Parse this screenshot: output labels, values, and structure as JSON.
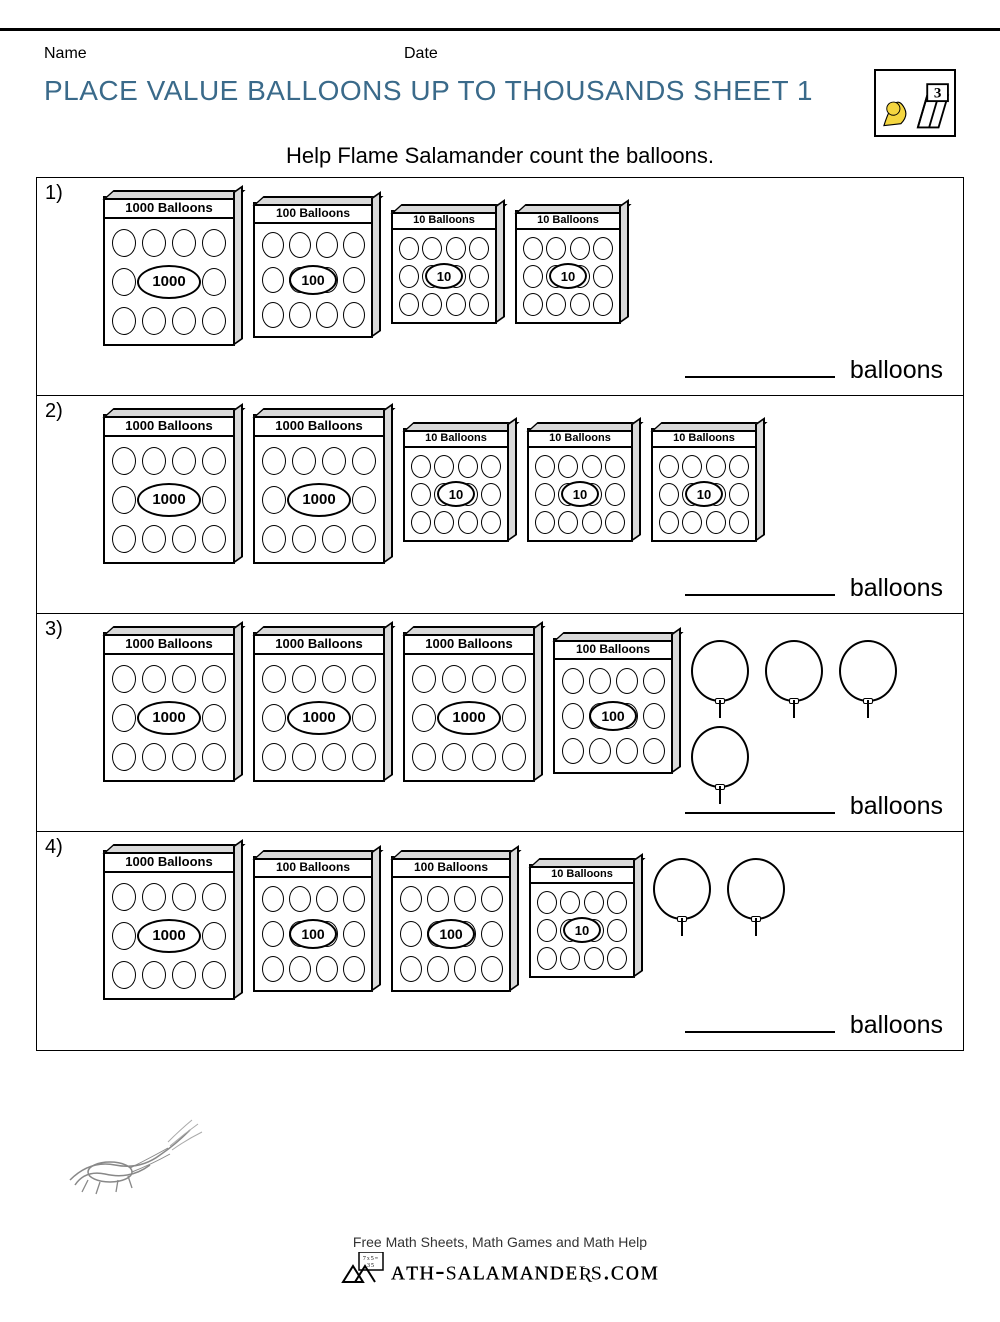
{
  "header": {
    "name_label": "Name",
    "date_label": "Date"
  },
  "title": "PLACE VALUE BALLOONS UP TO THOUSANDS SHEET 1",
  "title_color": "#3a6a8a",
  "grade_badge": {
    "number": "3"
  },
  "subtitle": "Help Flame Salamander count the balloons.",
  "box_labels": {
    "1000": "1000 Balloons",
    "100": "100 Balloons",
    "10": "10 Balloons"
  },
  "box_center": {
    "1000": "1000",
    "100": "100",
    "10": "10"
  },
  "answer_word": "balloons",
  "problems": [
    {
      "num": "1)",
      "boxes": [
        "1000",
        "100",
        "10",
        "10"
      ],
      "loose": 0
    },
    {
      "num": "2)",
      "boxes": [
        "1000",
        "1000",
        "10",
        "10",
        "10"
      ],
      "loose": 0
    },
    {
      "num": "3)",
      "boxes": [
        "1000",
        "1000",
        "1000",
        "100"
      ],
      "loose": 4
    },
    {
      "num": "4)",
      "boxes": [
        "1000",
        "100",
        "100",
        "10"
      ],
      "loose": 2
    }
  ],
  "footer": {
    "tagline": "Free Math Sheets, Math Games and Math Help",
    "site": "ᴀᴛʜ-sᴀʟᴀᴍᴀɴᴅᴇʀs.ᴄᴏᴍ"
  },
  "colors": {
    "rule": "#000000",
    "box_border": "#000000",
    "box_side": "#d9d9d9",
    "bg": "#ffffff"
  }
}
